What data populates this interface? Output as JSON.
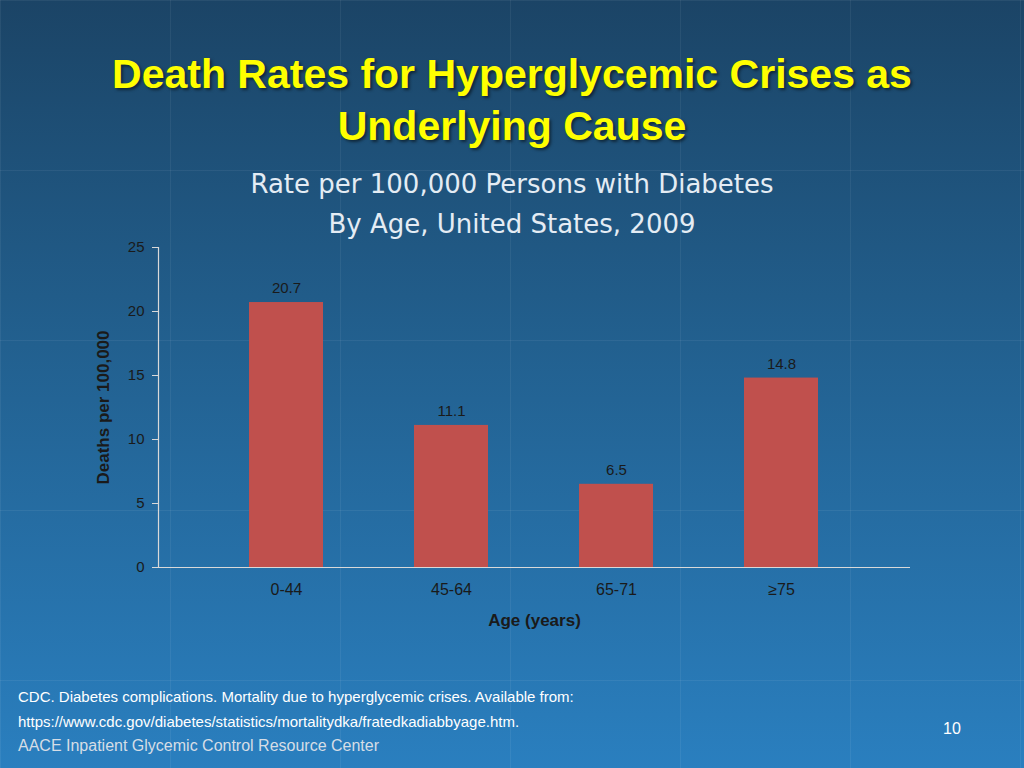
{
  "chart_data": {
    "type": "bar",
    "title": "Death Rates for Hyperglycemic Crises as\nUnderlying Cause",
    "subtitle": "Rate per 100,000 Persons with Diabetes\nBy Age, United States, 2009",
    "x_label": "Age (years)",
    "y_label": "Deaths per 100,000",
    "categories": [
      "0-44",
      "45-64",
      "65-71",
      "≥75"
    ],
    "values": [
      20.7,
      11.1,
      6.5,
      14.8
    ],
    "color": "#c0504d",
    "ylim": [
      0,
      25
    ],
    "yticks": [
      0,
      5,
      10,
      15,
      20,
      25
    ],
    "grid": false,
    "data_labels": true
  },
  "source": "CDC. Diabetes complications. Mortality due to hyperglycemic crises. Available from:\nhttps://www.cdc.gov/diabetes/statistics/mortalitydka/fratedkadiabbyage.htm.",
  "footer": "AACE Inpatient Glycemic Control Resource Center",
  "page_number": 10
}
